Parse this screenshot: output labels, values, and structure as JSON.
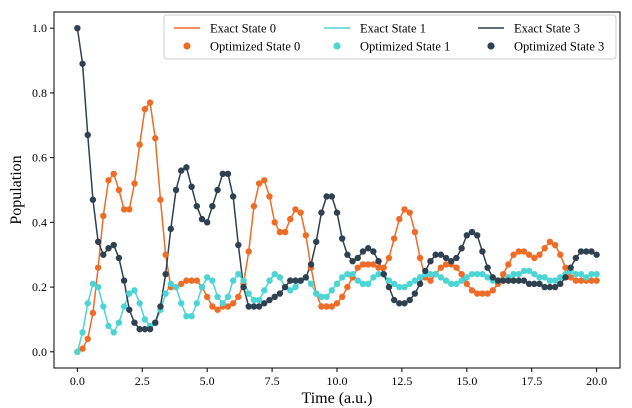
{
  "chart_data": {
    "type": "line",
    "xlabel": "Time (a.u.)",
    "ylabel": "Population",
    "xlim": [
      -0.9,
      20.9
    ],
    "ylim": [
      -0.05,
      1.05
    ],
    "x_ticks": [
      "0.0",
      "2.5",
      "5.0",
      "7.5",
      "10.0",
      "12.5",
      "15.0",
      "17.5",
      "20.0"
    ],
    "y_ticks": [
      "0.0",
      "0.2",
      "0.4",
      "0.6",
      "0.8",
      "1.0"
    ],
    "legend_position": "top-right",
    "x": [
      0.0,
      0.2,
      0.4,
      0.6,
      0.8,
      1.0,
      1.2,
      1.4,
      1.6,
      1.8,
      2.0,
      2.2,
      2.4,
      2.6,
      2.8,
      3.0,
      3.2,
      3.4,
      3.6,
      3.8,
      4.0,
      4.2,
      4.4,
      4.6,
      4.8,
      5.0,
      5.2,
      5.4,
      5.6,
      5.8,
      6.0,
      6.2,
      6.4,
      6.6,
      6.8,
      7.0,
      7.2,
      7.4,
      7.6,
      7.8,
      8.0,
      8.2,
      8.4,
      8.6,
      8.8,
      9.0,
      9.2,
      9.4,
      9.6,
      9.8,
      10.0,
      10.2,
      10.4,
      10.6,
      10.8,
      11.0,
      11.2,
      11.4,
      11.6,
      11.8,
      12.0,
      12.2,
      12.4,
      12.6,
      12.8,
      13.0,
      13.2,
      13.4,
      13.6,
      13.8,
      14.0,
      14.2,
      14.4,
      14.6,
      14.8,
      15.0,
      15.2,
      15.4,
      15.6,
      15.8,
      16.0,
      16.2,
      16.4,
      16.6,
      16.8,
      17.0,
      17.2,
      17.4,
      17.6,
      17.8,
      18.0,
      18.2,
      18.4,
      18.6,
      18.8,
      19.0,
      19.2,
      19.4,
      19.6,
      19.8,
      20.0
    ],
    "series": [
      {
        "name": "State 0",
        "legend_line": "Exact State 0",
        "legend_marker": "Optimized State 0",
        "color": "#ee6c27",
        "values": [
          0.0,
          0.01,
          0.04,
          0.12,
          0.26,
          0.42,
          0.53,
          0.55,
          0.5,
          0.44,
          0.44,
          0.52,
          0.64,
          0.75,
          0.77,
          0.66,
          0.47,
          0.3,
          0.2,
          0.2,
          0.21,
          0.22,
          0.22,
          0.22,
          0.2,
          0.17,
          0.14,
          0.13,
          0.14,
          0.14,
          0.15,
          0.17,
          0.21,
          0.31,
          0.45,
          0.52,
          0.53,
          0.48,
          0.4,
          0.37,
          0.37,
          0.41,
          0.44,
          0.43,
          0.36,
          0.26,
          0.18,
          0.14,
          0.14,
          0.14,
          0.15,
          0.17,
          0.2,
          0.23,
          0.26,
          0.27,
          0.27,
          0.27,
          0.26,
          0.26,
          0.29,
          0.35,
          0.41,
          0.44,
          0.43,
          0.37,
          0.29,
          0.23,
          0.22,
          0.24,
          0.26,
          0.27,
          0.27,
          0.26,
          0.24,
          0.21,
          0.19,
          0.18,
          0.18,
          0.18,
          0.19,
          0.21,
          0.24,
          0.27,
          0.3,
          0.31,
          0.31,
          0.3,
          0.29,
          0.3,
          0.32,
          0.34,
          0.33,
          0.3,
          0.26,
          0.23,
          0.22,
          0.22,
          0.22,
          0.22,
          0.22
        ]
      },
      {
        "name": "State 1",
        "legend_line": "Exact State 1",
        "legend_marker": "Optimized State 1",
        "color": "#4dd4d4",
        "values": [
          0.0,
          0.06,
          0.15,
          0.21,
          0.2,
          0.14,
          0.08,
          0.06,
          0.09,
          0.14,
          0.18,
          0.19,
          0.15,
          0.1,
          0.08,
          0.09,
          0.13,
          0.18,
          0.21,
          0.2,
          0.15,
          0.11,
          0.11,
          0.15,
          0.2,
          0.23,
          0.22,
          0.17,
          0.15,
          0.17,
          0.22,
          0.24,
          0.22,
          0.18,
          0.16,
          0.16,
          0.19,
          0.22,
          0.24,
          0.23,
          0.2,
          0.19,
          0.2,
          0.22,
          0.23,
          0.21,
          0.18,
          0.17,
          0.17,
          0.19,
          0.21,
          0.23,
          0.24,
          0.24,
          0.22,
          0.21,
          0.21,
          0.23,
          0.24,
          0.24,
          0.22,
          0.21,
          0.2,
          0.2,
          0.21,
          0.22,
          0.23,
          0.24,
          0.24,
          0.24,
          0.23,
          0.22,
          0.21,
          0.21,
          0.22,
          0.23,
          0.24,
          0.24,
          0.24,
          0.23,
          0.22,
          0.22,
          0.22,
          0.23,
          0.24,
          0.24,
          0.25,
          0.25,
          0.24,
          0.23,
          0.23,
          0.22,
          0.22,
          0.23,
          0.24,
          0.25,
          0.24,
          0.24,
          0.23,
          0.24,
          0.24
        ]
      },
      {
        "name": "State 3",
        "legend_line": "Exact State 3",
        "legend_marker": "Optimized State 3",
        "color": "#2f4050",
        "values": [
          1.0,
          0.89,
          0.67,
          0.47,
          0.34,
          0.3,
          0.32,
          0.33,
          0.29,
          0.22,
          0.13,
          0.09,
          0.07,
          0.07,
          0.07,
          0.09,
          0.14,
          0.24,
          0.38,
          0.5,
          0.56,
          0.57,
          0.51,
          0.45,
          0.41,
          0.4,
          0.45,
          0.5,
          0.55,
          0.55,
          0.48,
          0.33,
          0.2,
          0.14,
          0.14,
          0.14,
          0.15,
          0.16,
          0.17,
          0.18,
          0.2,
          0.22,
          0.22,
          0.22,
          0.23,
          0.27,
          0.34,
          0.43,
          0.48,
          0.48,
          0.43,
          0.35,
          0.3,
          0.28,
          0.29,
          0.31,
          0.32,
          0.31,
          0.28,
          0.24,
          0.2,
          0.16,
          0.15,
          0.15,
          0.16,
          0.18,
          0.21,
          0.25,
          0.28,
          0.3,
          0.3,
          0.29,
          0.28,
          0.29,
          0.32,
          0.36,
          0.37,
          0.36,
          0.31,
          0.26,
          0.23,
          0.22,
          0.22,
          0.22,
          0.22,
          0.22,
          0.22,
          0.21,
          0.21,
          0.21,
          0.2,
          0.2,
          0.2,
          0.21,
          0.23,
          0.26,
          0.29,
          0.31,
          0.31,
          0.31,
          0.3
        ]
      }
    ],
    "legend_order": [
      {
        "label": "Exact State 0",
        "series": 0,
        "kind": "line"
      },
      {
        "label": "Exact State 1",
        "series": 1,
        "kind": "line"
      },
      {
        "label": "Exact State 3",
        "series": 2,
        "kind": "line"
      },
      {
        "label": "Optimized State 0",
        "series": 0,
        "kind": "marker"
      },
      {
        "label": "Optimized State 1",
        "series": 1,
        "kind": "marker"
      },
      {
        "label": "Optimized State 3",
        "series": 2,
        "kind": "marker"
      }
    ]
  }
}
